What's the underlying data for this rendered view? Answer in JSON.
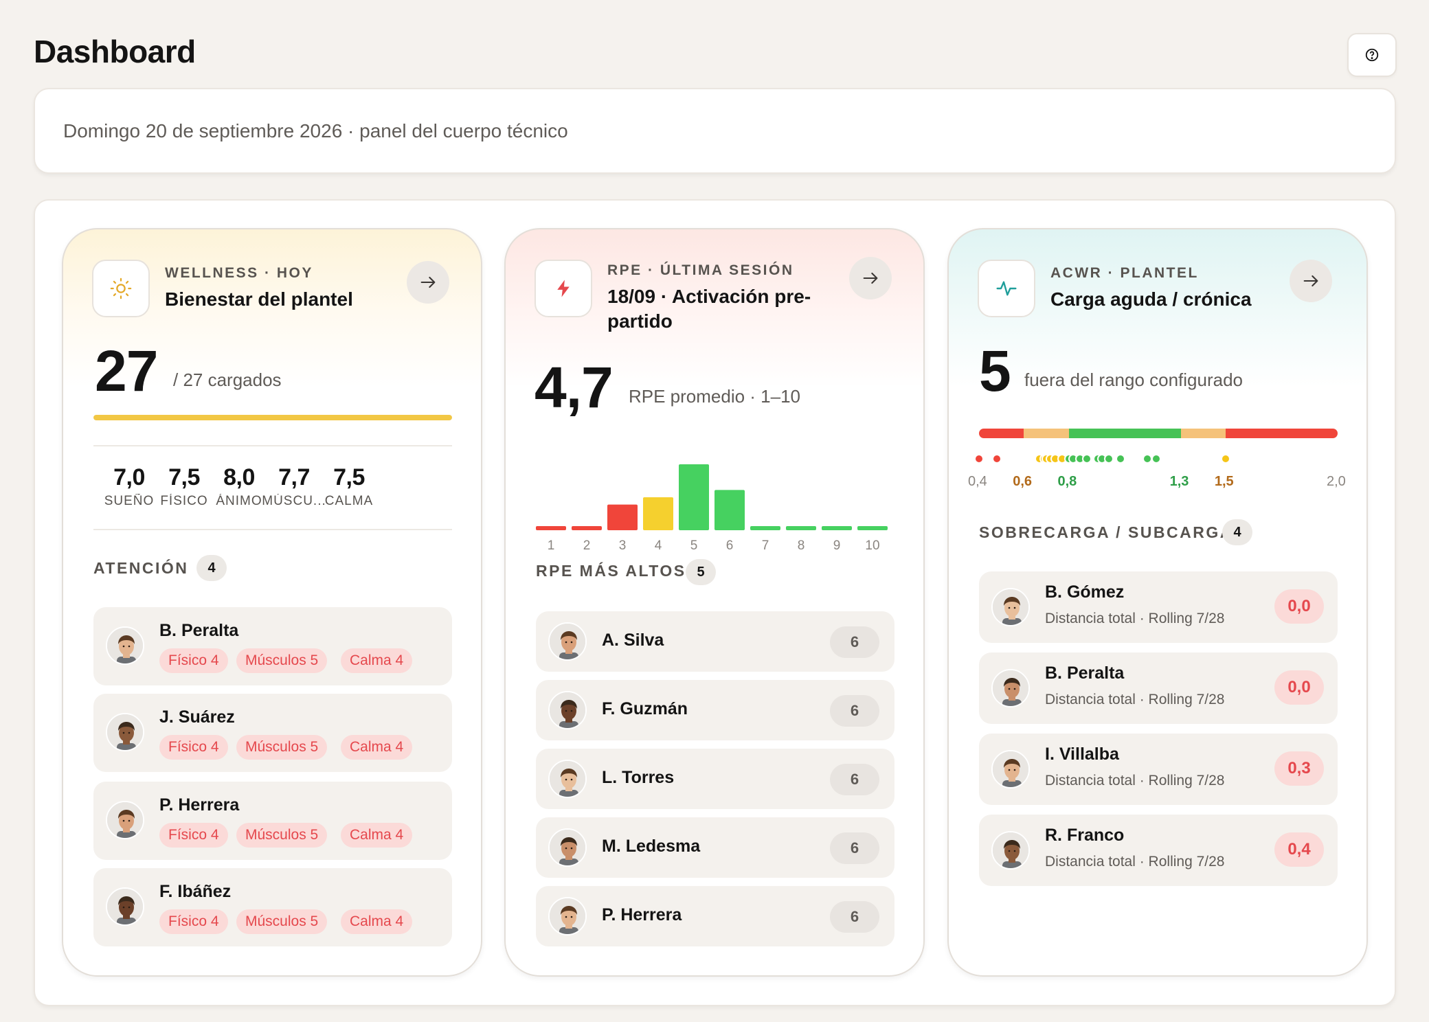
{
  "header": {
    "title": "Dashboard",
    "help_icon": "question-circle-icon"
  },
  "date_banner": "Domingo 20 de septiembre 2026 · panel del cuerpo técnico",
  "colors": {
    "yellow": "#f2c744",
    "green": "#46d160",
    "red": "#f0453a",
    "orange": "#f5c27a",
    "bg": "#f5f2ee"
  },
  "wellness": {
    "icon": "sun-icon",
    "kicker": "WELLNESS · HOY",
    "title": "Bienestar del plantel",
    "big": "27",
    "big_sub": "/ 27 cargados",
    "progress_fraction": 1.0,
    "metrics": [
      {
        "value": "7,0",
        "label": "SUEÑO"
      },
      {
        "value": "7,5",
        "label": "FÍSICO"
      },
      {
        "value": "8,0",
        "label": "ÁNIMO"
      },
      {
        "value": "7,7",
        "label": "MÚSCU..."
      },
      {
        "value": "7,5",
        "label": "CALMA"
      }
    ],
    "section": "ATENCIÓN",
    "section_count": "4",
    "rows": [
      {
        "name": "B. Peralta",
        "tags": [
          "Físico 4",
          "Músculos 5",
          "Calma 4"
        ]
      },
      {
        "name": "J. Suárez",
        "tags": [
          "Físico 4",
          "Músculos 5",
          "Calma 4"
        ]
      },
      {
        "name": "P. Herrera",
        "tags": [
          "Físico 4",
          "Músculos 5",
          "Calma 4"
        ]
      },
      {
        "name": "F. Ibáñez",
        "tags": [
          "Físico 4",
          "Músculos 5",
          "Calma 4"
        ]
      }
    ]
  },
  "rpe": {
    "icon": "lightning-icon",
    "kicker": "RPE · ÚLTIMA SESIÓN",
    "title": "18/09 · Activación pre-partido",
    "big": "4,7",
    "big_sub": "RPE promedio · 1–10",
    "section": "RPE MÁS ALTOS",
    "section_count": "5",
    "rows": [
      {
        "name": "A. Silva",
        "value": "6"
      },
      {
        "name": "F. Guzmán",
        "value": "6"
      },
      {
        "name": "L. Torres",
        "value": "6"
      },
      {
        "name": "M. Ledesma",
        "value": "6"
      },
      {
        "name": "P. Herrera",
        "value": "6"
      }
    ]
  },
  "chart_data": {
    "type": "bar",
    "categories": [
      "1",
      "2",
      "3",
      "4",
      "5",
      "6",
      "7",
      "8",
      "9",
      "10"
    ],
    "values": [
      0.5,
      0.5,
      3.5,
      4.5,
      9,
      5.5,
      0.5,
      0.5,
      0.5,
      0.5
    ],
    "bar_colors": [
      "#f0453a",
      "#f0453a",
      "#f0453a",
      "#f5d02e",
      "#46d160",
      "#46d160",
      "#46d160",
      "#46d160",
      "#46d160",
      "#46d160"
    ],
    "xlabel": "",
    "ylabel": "",
    "ylim": [
      0,
      9
    ]
  },
  "acwr": {
    "icon": "activity-pulse-icon",
    "kicker": "ACWR · PLANTEL",
    "title": "Carga aguda / crónica",
    "big": "5",
    "big_sub": "fuera del rango configurado",
    "scale_min": 0.4,
    "scale_max": 2.0,
    "scale_labels": [
      {
        "text": "0,4",
        "value": 0.4,
        "color": "#8a8580"
      },
      {
        "text": "0,6",
        "value": 0.6,
        "color": "#b26a1a"
      },
      {
        "text": "0,8",
        "value": 0.8,
        "color": "#2e9e48"
      },
      {
        "text": "1,3",
        "value": 1.3,
        "color": "#2e9e48"
      },
      {
        "text": "1,5",
        "value": 1.5,
        "color": "#b26a1a"
      },
      {
        "text": "2,0",
        "value": 2.0,
        "color": "#8a8580"
      }
    ],
    "zones": [
      {
        "from": 0.4,
        "to": 0.6,
        "color": "#f0453a"
      },
      {
        "from": 0.6,
        "to": 0.8,
        "color": "#f5c27a"
      },
      {
        "from": 0.8,
        "to": 1.3,
        "color": "#46c256"
      },
      {
        "from": 1.3,
        "to": 1.5,
        "color": "#f5c27a"
      },
      {
        "from": 1.5,
        "to": 2.0,
        "color": "#f0453a"
      }
    ],
    "player_values": [
      0.4,
      0.48,
      0.67,
      0.69,
      0.7,
      0.72,
      0.74,
      0.77,
      0.8,
      0.82,
      0.85,
      0.88,
      0.93,
      0.95,
      0.98,
      1.03,
      1.15,
      1.19,
      1.5
    ],
    "section": "SOBRECARGA / SUBCARGA",
    "section_count": "4",
    "rows": [
      {
        "name": "B. Gómez",
        "sub": "Distancia total · Rolling 7/28",
        "value": "0,0"
      },
      {
        "name": "B. Peralta",
        "sub": "Distancia total · Rolling 7/28",
        "value": "0,0"
      },
      {
        "name": "I. Villalba",
        "sub": "Distancia total · Rolling 7/28",
        "value": "0,3"
      },
      {
        "name": "R. Franco",
        "sub": "Distancia total · Rolling 7/28",
        "value": "0,4"
      }
    ]
  }
}
